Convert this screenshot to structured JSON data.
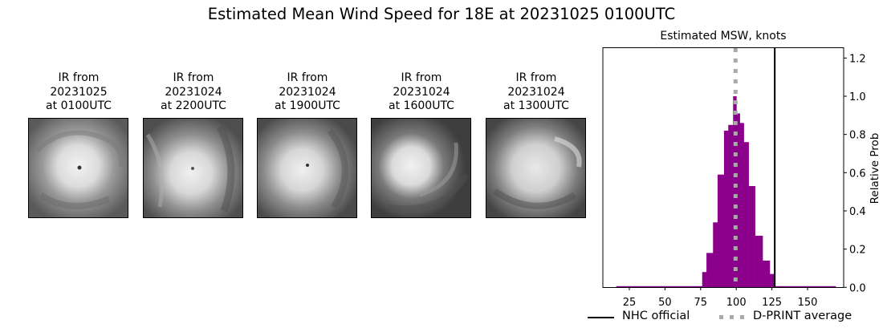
{
  "title": "Estimated Mean Wind Speed for 18E at 20231025 0100UTC",
  "panels": [
    {
      "line1": "IR from",
      "line2": "20231025",
      "line3": "at 0100UTC"
    },
    {
      "line1": "IR from",
      "line2": "20231024",
      "line3": "at 2200UTC"
    },
    {
      "line1": "IR from",
      "line2": "20231024",
      "line3": "at 1900UTC"
    },
    {
      "line1": "IR from",
      "line2": "20231024",
      "line3": "at 1600UTC"
    },
    {
      "line1": "IR from",
      "line2": "20231024",
      "line3": "at 1300UTC"
    }
  ],
  "legend": {
    "nhc_label": "NHC official",
    "dprint_label": "D-PRINT average"
  },
  "colors": {
    "bars": "#8b008b",
    "nhc_line": "#000000",
    "dprint_line": "#a9a9a9"
  },
  "chart_data": {
    "type": "bar",
    "title": "Estimated MSW, knots",
    "xlabel": "",
    "ylabel": "Relative Prob",
    "xlim": [
      15,
      175
    ],
    "ylim": [
      0,
      1.25
    ],
    "xticks": [
      25,
      50,
      75,
      100,
      125,
      150
    ],
    "yticks": [
      "0.0",
      "0.2",
      "0.4",
      "0.6",
      "0.8",
      "1.0",
      "1.2"
    ],
    "y_axis_position": "right",
    "grid": false,
    "legend_position": "bottom",
    "bins": [
      {
        "x0": 15.8,
        "x1": 76.1,
        "value": 0.005
      },
      {
        "x0": 76.1,
        "x1": 79.1,
        "value": 0.08
      },
      {
        "x0": 79.1,
        "x1": 83.7,
        "value": 0.18
      },
      {
        "x0": 83.7,
        "x1": 86.9,
        "value": 0.34
      },
      {
        "x0": 86.9,
        "x1": 91.4,
        "value": 0.59
      },
      {
        "x0": 91.4,
        "x1": 94.4,
        "value": 0.82
      },
      {
        "x0": 94.4,
        "x1": 97.8,
        "value": 0.85
      },
      {
        "x0": 97.8,
        "x1": 100.1,
        "value": 1.0
      },
      {
        "x0": 100.1,
        "x1": 102.5,
        "value": 0.91
      },
      {
        "x0": 102.5,
        "x1": 105.3,
        "value": 0.86
      },
      {
        "x0": 105.3,
        "x1": 108.7,
        "value": 0.76
      },
      {
        "x0": 108.7,
        "x1": 113.2,
        "value": 0.53
      },
      {
        "x0": 113.2,
        "x1": 118.5,
        "value": 0.27
      },
      {
        "x0": 118.5,
        "x1": 123.5,
        "value": 0.14
      },
      {
        "x0": 123.5,
        "x1": 127.0,
        "value": 0.07
      },
      {
        "x0": 127.0,
        "x1": 169.7,
        "value": 0.005
      }
    ],
    "vlines": [
      {
        "name": "NHC official",
        "x": 127,
        "style": "solid",
        "color": "#000000"
      },
      {
        "name": "D-PRINT average",
        "x": 99.5,
        "style": "dotted",
        "color": "#a9a9a9"
      }
    ]
  }
}
